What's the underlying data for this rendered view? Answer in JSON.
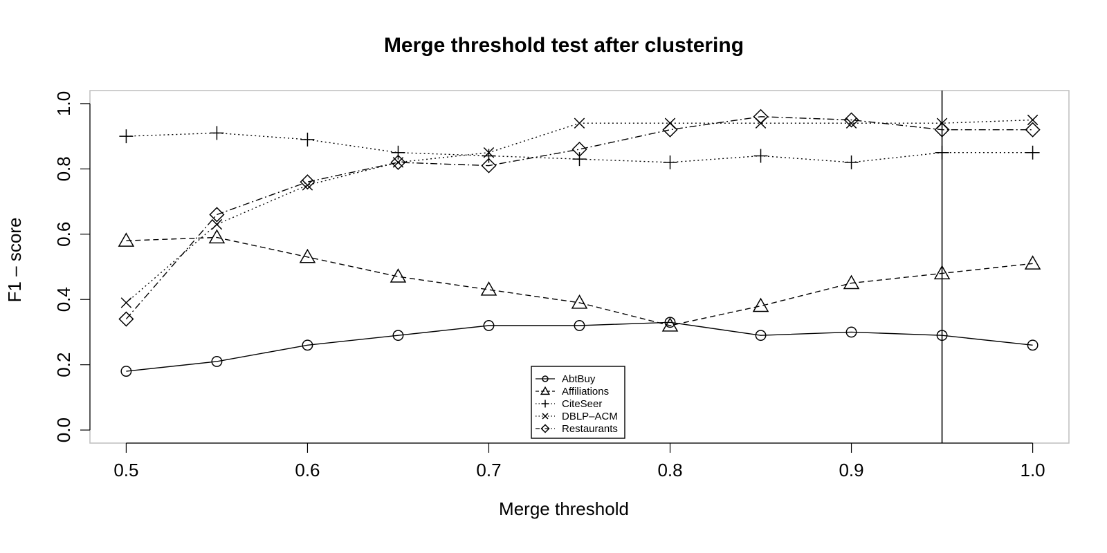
{
  "chart_data": {
    "type": "line",
    "title": "Merge threshold test after clustering",
    "xlabel": "Merge threshold",
    "ylabel": "F1 – score",
    "xlim": [
      0.48,
      1.02
    ],
    "ylim": [
      -0.04,
      1.04
    ],
    "x_ticks": [
      "0.5",
      "0.6",
      "0.7",
      "0.8",
      "0.9",
      "1.0"
    ],
    "y_ticks": [
      "0.0",
      "0.2",
      "0.4",
      "0.6",
      "0.8",
      "1.0"
    ],
    "grid": false,
    "legend_position": "bottom-center",
    "x": [
      0.5,
      0.55,
      0.6,
      0.65,
      0.7,
      0.75,
      0.8,
      0.85,
      0.9,
      0.95,
      1.0
    ],
    "vertical_line_x": 0.95,
    "series": [
      {
        "name": "AbtBuy",
        "marker": "circle",
        "line": "solid",
        "values": [
          0.18,
          0.21,
          0.26,
          0.29,
          0.32,
          0.32,
          0.33,
          0.29,
          0.3,
          0.29,
          0.26
        ]
      },
      {
        "name": "Affiliations",
        "marker": "triangle",
        "line": "dashed",
        "values": [
          0.58,
          0.59,
          0.53,
          0.47,
          0.43,
          0.39,
          0.32,
          0.38,
          0.45,
          0.48,
          0.51
        ]
      },
      {
        "name": "CiteSeer",
        "marker": "plus",
        "line": "dotted",
        "values": [
          0.9,
          0.91,
          0.89,
          0.85,
          0.84,
          0.83,
          0.82,
          0.84,
          0.82,
          0.85,
          0.85
        ]
      },
      {
        "name": "DBLP–ACM",
        "marker": "cross",
        "line": "dotted",
        "values": [
          0.39,
          0.63,
          0.75,
          0.82,
          0.85,
          0.94,
          0.94,
          0.94,
          0.94,
          0.94,
          0.95
        ]
      },
      {
        "name": "Restaurants",
        "marker": "diamond",
        "line": "dashdot",
        "values": [
          0.34,
          0.66,
          0.76,
          0.82,
          0.81,
          0.86,
          0.92,
          0.96,
          0.95,
          0.92,
          0.92
        ]
      }
    ]
  }
}
